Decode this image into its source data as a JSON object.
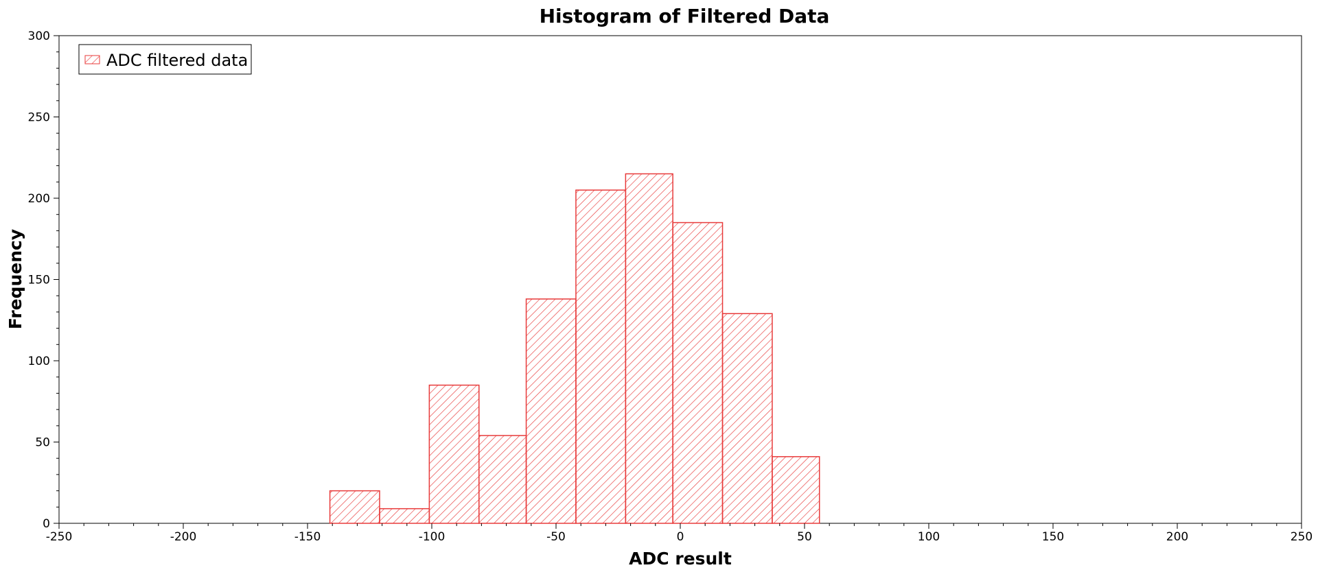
{
  "chart_data": {
    "type": "bar",
    "title": "Histogram of Filtered Data",
    "xlabel": "ADC result",
    "ylabel": "Frequency",
    "xlim": [
      -250,
      250
    ],
    "ylim": [
      0,
      300
    ],
    "x_ticks": [
      -250,
      -200,
      -150,
      -100,
      -50,
      0,
      50,
      100,
      150,
      200,
      250
    ],
    "y_ticks": [
      0,
      50,
      100,
      150,
      200,
      250,
      300
    ],
    "series": [
      {
        "name": "ADC filtered data",
        "color": "#e83a3a",
        "bins": [
          {
            "x0": -141,
            "x1": -121,
            "value": 20
          },
          {
            "x0": -121,
            "x1": -101,
            "value": 9
          },
          {
            "x0": -101,
            "x1": -81,
            "value": 85
          },
          {
            "x0": -81,
            "x1": -62,
            "value": 54
          },
          {
            "x0": -62,
            "x1": -42,
            "value": 138
          },
          {
            "x0": -42,
            "x1": -22,
            "value": 205
          },
          {
            "x0": -22,
            "x1": -3,
            "value": 215
          },
          {
            "x0": -3,
            "x1": 17,
            "value": 185
          },
          {
            "x0": 17,
            "x1": 37,
            "value": 129
          },
          {
            "x0": 37,
            "x1": 56,
            "value": 41
          }
        ]
      }
    ],
    "legend": {
      "position": "top-left",
      "label": "ADC filtered data"
    },
    "grid": false
  }
}
